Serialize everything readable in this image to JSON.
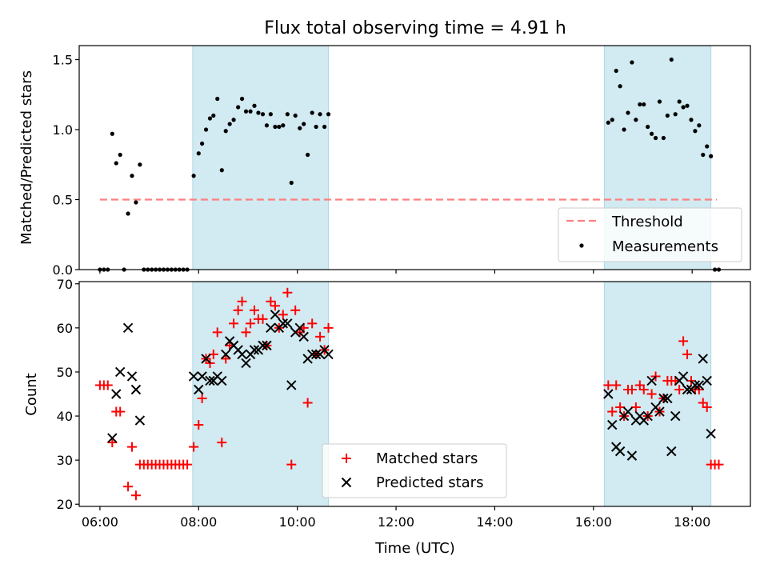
{
  "chart_data": [
    {
      "type": "scatter",
      "title": "Flux total observing time = 4.91 h",
      "xlabel": "",
      "ylabel": "Matched/Predicted stars",
      "xlim": [
        5.58,
        19.18
      ],
      "ylim": [
        0,
        1.6
      ],
      "yticks": [
        0.0,
        0.5,
        1.0,
        1.5
      ],
      "ytick_labels": [
        "0.0",
        "0.5",
        "1.0",
        "1.5"
      ],
      "grid": false,
      "legend_position": "bottom-right",
      "shaded_regions": [
        [
          7.88,
          10.63
        ],
        [
          16.22,
          18.38
        ]
      ],
      "shade_color": "#add8e6",
      "threshold": {
        "name": "Threshold",
        "value": 0.5,
        "x_range": [
          6.0,
          18.5
        ],
        "color": "#ff7f7f"
      },
      "series": [
        {
          "name": "Measurements",
          "color": "#000000",
          "points": [
            [
              6.0,
              0
            ],
            [
              6.08,
              0
            ],
            [
              6.16,
              0
            ],
            [
              6.25,
              0.97
            ],
            [
              6.33,
              0.76
            ],
            [
              6.41,
              0.82
            ],
            [
              6.49,
              0
            ],
            [
              6.57,
              0.4
            ],
            [
              6.65,
              0.67
            ],
            [
              6.73,
              0.48
            ],
            [
              6.81,
              0.75
            ],
            [
              6.89,
              0
            ],
            [
              6.97,
              0
            ],
            [
              7.05,
              0
            ],
            [
              7.13,
              0
            ],
            [
              7.21,
              0
            ],
            [
              7.29,
              0
            ],
            [
              7.37,
              0
            ],
            [
              7.45,
              0
            ],
            [
              7.53,
              0
            ],
            [
              7.61,
              0
            ],
            [
              7.69,
              0
            ],
            [
              7.77,
              0
            ],
            [
              7.9,
              0.67
            ],
            [
              8.0,
              0.83
            ],
            [
              8.07,
              0.9
            ],
            [
              8.15,
              1.0
            ],
            [
              8.23,
              1.08
            ],
            [
              8.3,
              1.1
            ],
            [
              8.38,
              1.22
            ],
            [
              8.47,
              0.71
            ],
            [
              8.55,
              0.99
            ],
            [
              8.63,
              1.04
            ],
            [
              8.71,
              1.07
            ],
            [
              8.8,
              1.16
            ],
            [
              8.88,
              1.22
            ],
            [
              8.96,
              1.13
            ],
            [
              9.05,
              1.13
            ],
            [
              9.13,
              1.17
            ],
            [
              9.21,
              1.12
            ],
            [
              9.3,
              1.11
            ],
            [
              9.38,
              1.03
            ],
            [
              9.46,
              1.11
            ],
            [
              9.55,
              1.02
            ],
            [
              9.63,
              1.02
            ],
            [
              9.71,
              1.03
            ],
            [
              9.8,
              1.11
            ],
            [
              9.88,
              0.62
            ],
            [
              9.96,
              1.1
            ],
            [
              10.05,
              1.01
            ],
            [
              10.13,
              1.04
            ],
            [
              10.21,
              0.82
            ],
            [
              10.3,
              1.12
            ],
            [
              10.38,
              1.02
            ],
            [
              10.46,
              1.11
            ],
            [
              10.55,
              1.02
            ],
            [
              10.63,
              1.11
            ],
            [
              16.3,
              1.05
            ],
            [
              16.38,
              1.07
            ],
            [
              16.46,
              1.42
            ],
            [
              16.54,
              1.31
            ],
            [
              16.62,
              1.0
            ],
            [
              16.7,
              1.12
            ],
            [
              16.78,
              1.48
            ],
            [
              16.86,
              1.07
            ],
            [
              16.94,
              1.18
            ],
            [
              17.02,
              1.18
            ],
            [
              17.1,
              1.02
            ],
            [
              17.18,
              0.97
            ],
            [
              17.26,
              0.94
            ],
            [
              17.34,
              1.2
            ],
            [
              17.42,
              0.94
            ],
            [
              17.5,
              1.1
            ],
            [
              17.58,
              1.5
            ],
            [
              17.66,
              1.11
            ],
            [
              17.74,
              1.2
            ],
            [
              17.82,
              1.16
            ],
            [
              17.9,
              1.17
            ],
            [
              17.98,
              1.07
            ],
            [
              18.06,
              0.99
            ],
            [
              18.14,
              1.03
            ],
            [
              18.22,
              0.82
            ],
            [
              18.3,
              0.88
            ],
            [
              18.38,
              0.81
            ],
            [
              18.46,
              0
            ],
            [
              18.54,
              0
            ]
          ]
        }
      ]
    },
    {
      "type": "scatter",
      "title": "",
      "xlabel": "Time (UTC)",
      "ylabel": "Count",
      "xlim": [
        5.58,
        19.18
      ],
      "ylim": [
        19.5,
        70.5
      ],
      "xticks": [
        6,
        8,
        10,
        12,
        14,
        16,
        18
      ],
      "xtick_labels": [
        "06:00",
        "08:00",
        "10:00",
        "12:00",
        "14:00",
        "16:00",
        "18:00"
      ],
      "yticks": [
        20,
        30,
        40,
        50,
        60,
        70
      ],
      "ytick_labels": [
        "20",
        "30",
        "40",
        "50",
        "60",
        "70"
      ],
      "grid": false,
      "legend_position": "bottom-center",
      "shaded_regions": [
        [
          7.88,
          10.63
        ],
        [
          16.22,
          18.38
        ]
      ],
      "shade_color": "#add8e6",
      "series": [
        {
          "name": "Matched stars",
          "marker": "plus",
          "color": "#ff0000",
          "points": [
            [
              6.0,
              47
            ],
            [
              6.08,
              47
            ],
            [
              6.16,
              47
            ],
            [
              6.25,
              34
            ],
            [
              6.33,
              41
            ],
            [
              6.41,
              41
            ],
            [
              6.57,
              24
            ],
            [
              6.65,
              33
            ],
            [
              6.73,
              22
            ],
            [
              6.81,
              29
            ],
            [
              6.89,
              29
            ],
            [
              6.97,
              29
            ],
            [
              7.05,
              29
            ],
            [
              7.13,
              29
            ],
            [
              7.21,
              29
            ],
            [
              7.29,
              29
            ],
            [
              7.37,
              29
            ],
            [
              7.45,
              29
            ],
            [
              7.53,
              29
            ],
            [
              7.61,
              29
            ],
            [
              7.69,
              29
            ],
            [
              7.77,
              29
            ],
            [
              7.9,
              33
            ],
            [
              8.0,
              38
            ],
            [
              8.07,
              44
            ],
            [
              8.15,
              53
            ],
            [
              8.23,
              52
            ],
            [
              8.3,
              54
            ],
            [
              8.38,
              59
            ],
            [
              8.47,
              34
            ],
            [
              8.55,
              53
            ],
            [
              8.63,
              56
            ],
            [
              8.71,
              61
            ],
            [
              8.8,
              64
            ],
            [
              8.88,
              66
            ],
            [
              8.96,
              59
            ],
            [
              9.05,
              61
            ],
            [
              9.13,
              64
            ],
            [
              9.21,
              62
            ],
            [
              9.3,
              62
            ],
            [
              9.38,
              56
            ],
            [
              9.46,
              66
            ],
            [
              9.55,
              65
            ],
            [
              9.63,
              60
            ],
            [
              9.71,
              63
            ],
            [
              9.8,
              68
            ],
            [
              9.88,
              29
            ],
            [
              9.96,
              64
            ],
            [
              10.05,
              59
            ],
            [
              10.13,
              60
            ],
            [
              10.21,
              43
            ],
            [
              10.3,
              61
            ],
            [
              10.38,
              54
            ],
            [
              10.46,
              58
            ],
            [
              10.55,
              55
            ],
            [
              10.63,
              60
            ],
            [
              16.3,
              47
            ],
            [
              16.38,
              41
            ],
            [
              16.46,
              47
            ],
            [
              16.54,
              42
            ],
            [
              16.62,
              40
            ],
            [
              16.7,
              46
            ],
            [
              16.78,
              46
            ],
            [
              16.86,
              42
            ],
            [
              16.94,
              47
            ],
            [
              17.02,
              46
            ],
            [
              17.1,
              40
            ],
            [
              17.18,
              45
            ],
            [
              17.26,
              49
            ],
            [
              17.34,
              41
            ],
            [
              17.42,
              44
            ],
            [
              17.5,
              48
            ],
            [
              17.58,
              48
            ],
            [
              17.66,
              48
            ],
            [
              17.74,
              46
            ],
            [
              17.82,
              57
            ],
            [
              17.9,
              54
            ],
            [
              17.98,
              48
            ],
            [
              18.06,
              46
            ],
            [
              18.14,
              46
            ],
            [
              18.22,
              43
            ],
            [
              18.3,
              42
            ],
            [
              18.38,
              29
            ],
            [
              18.46,
              29
            ],
            [
              18.54,
              29
            ]
          ]
        },
        {
          "name": "Predicted stars",
          "marker": "x",
          "color": "#000000",
          "points": [
            [
              6.25,
              35
            ],
            [
              6.33,
              45
            ],
            [
              6.41,
              50
            ],
            [
              6.57,
              60
            ],
            [
              6.65,
              49
            ],
            [
              6.73,
              46
            ],
            [
              6.81,
              39
            ],
            [
              7.9,
              49
            ],
            [
              8.0,
              46
            ],
            [
              8.07,
              49
            ],
            [
              8.15,
              53
            ],
            [
              8.23,
              48
            ],
            [
              8.3,
              48
            ],
            [
              8.38,
              49
            ],
            [
              8.47,
              48
            ],
            [
              8.55,
              54
            ],
            [
              8.63,
              57
            ],
            [
              8.71,
              56
            ],
            [
              8.8,
              55
            ],
            [
              8.88,
              54
            ],
            [
              8.96,
              52
            ],
            [
              9.05,
              54
            ],
            [
              9.13,
              55
            ],
            [
              9.21,
              55
            ],
            [
              9.3,
              56
            ],
            [
              9.38,
              56
            ],
            [
              9.46,
              60
            ],
            [
              9.55,
              63
            ],
            [
              9.63,
              60
            ],
            [
              9.71,
              61
            ],
            [
              9.8,
              61
            ],
            [
              9.88,
              47
            ],
            [
              9.96,
              59
            ],
            [
              10.05,
              60
            ],
            [
              10.13,
              58
            ],
            [
              10.21,
              53
            ],
            [
              10.3,
              54
            ],
            [
              10.38,
              54
            ],
            [
              10.46,
              54
            ],
            [
              10.55,
              55
            ],
            [
              10.63,
              54
            ],
            [
              16.3,
              45
            ],
            [
              16.38,
              38
            ],
            [
              16.46,
              33
            ],
            [
              16.54,
              32
            ],
            [
              16.62,
              40
            ],
            [
              16.7,
              41
            ],
            [
              16.78,
              31
            ],
            [
              16.86,
              39
            ],
            [
              16.94,
              40
            ],
            [
              17.02,
              39
            ],
            [
              17.1,
              40
            ],
            [
              17.18,
              48
            ],
            [
              17.26,
              42
            ],
            [
              17.34,
              41
            ],
            [
              17.42,
              44
            ],
            [
              17.5,
              44
            ],
            [
              17.58,
              32
            ],
            [
              17.66,
              40
            ],
            [
              17.74,
              48
            ],
            [
              17.82,
              49
            ],
            [
              17.9,
              46
            ],
            [
              17.98,
              46
            ],
            [
              18.06,
              47
            ],
            [
              18.14,
              47
            ],
            [
              18.22,
              53
            ],
            [
              18.3,
              48
            ],
            [
              18.38,
              36
            ]
          ]
        }
      ]
    }
  ]
}
